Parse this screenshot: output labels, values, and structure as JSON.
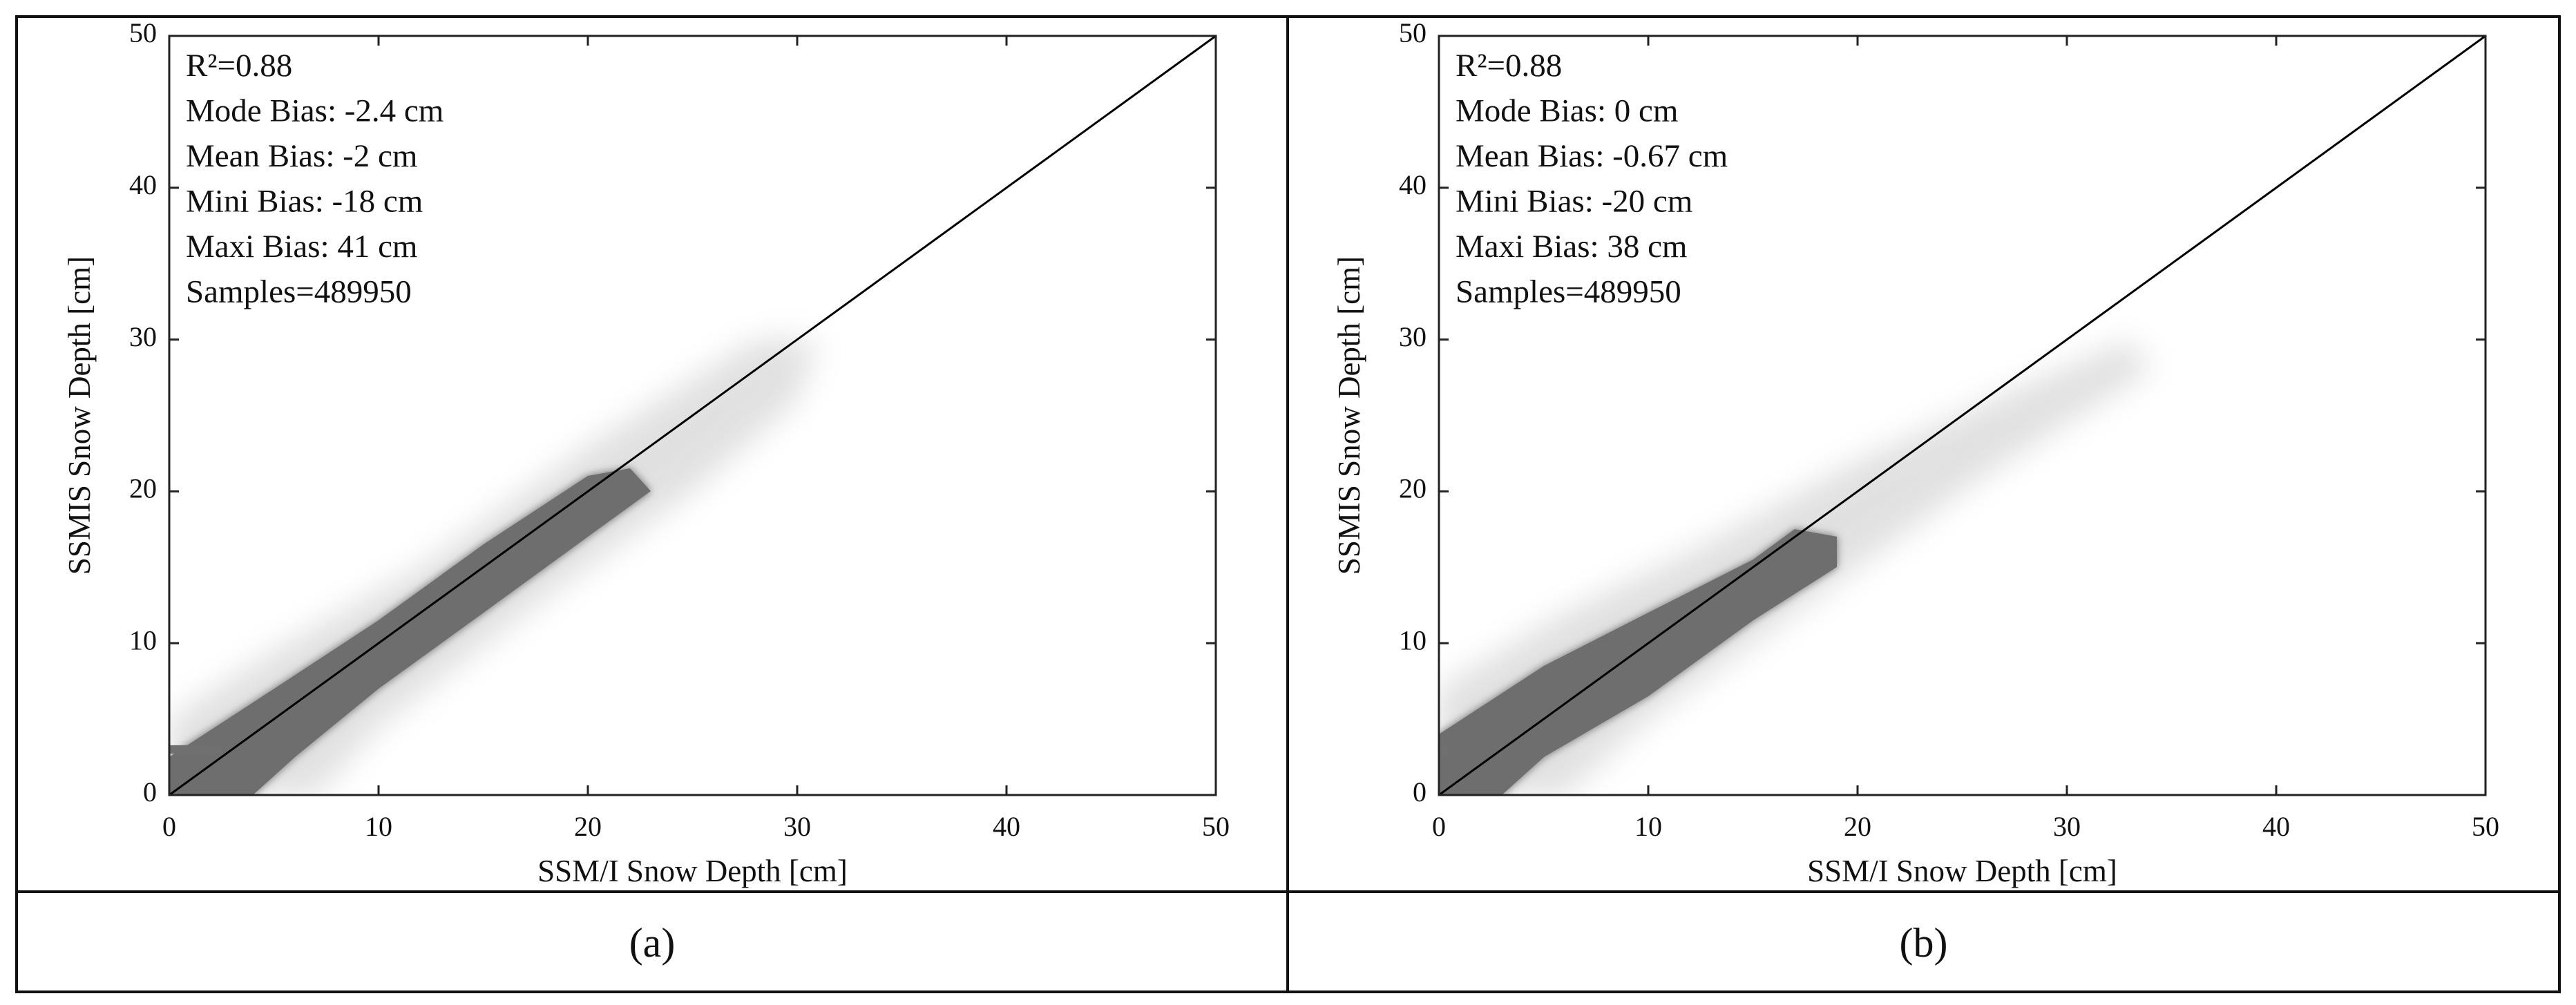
{
  "chart_data": [
    {
      "type": "scatter",
      "xlabel": "SSM/I Snow Depth [cm]",
      "ylabel": "SSMIS Snow Depth [cm]",
      "xlim": [
        0,
        50
      ],
      "ylim": [
        0,
        50
      ],
      "xticks": [
        0,
        10,
        20,
        30,
        40,
        50
      ],
      "yticks": [
        0,
        10,
        20,
        30,
        40,
        50
      ],
      "annotations": [
        "R²=0.88",
        "Mode Bias: -2.4 cm",
        "Mean Bias: -2 cm",
        "Mini Bias: -18 cm",
        "Maxi Bias: 41 cm",
        "Samples=489950"
      ],
      "identity_line": true,
      "color": "#6e6e6e",
      "caption": "(a)"
    },
    {
      "type": "scatter",
      "xlabel": "SSM/I Snow Depth [cm]",
      "ylabel": "SSMIS Snow Depth [cm]",
      "xlim": [
        0,
        50
      ],
      "ylim": [
        0,
        50
      ],
      "xticks": [
        0,
        10,
        20,
        30,
        40,
        50
      ],
      "yticks": [
        0,
        10,
        20,
        30,
        40,
        50
      ],
      "annotations": [
        "R²=0.88",
        "Mode Bias: 0 cm",
        "Mean Bias: -0.67 cm",
        "Mini Bias: -20 cm",
        "Maxi Bias: 38 cm",
        "Samples=489950"
      ],
      "identity_line": true,
      "color": "#6e6e6e",
      "caption": "(b)"
    }
  ]
}
